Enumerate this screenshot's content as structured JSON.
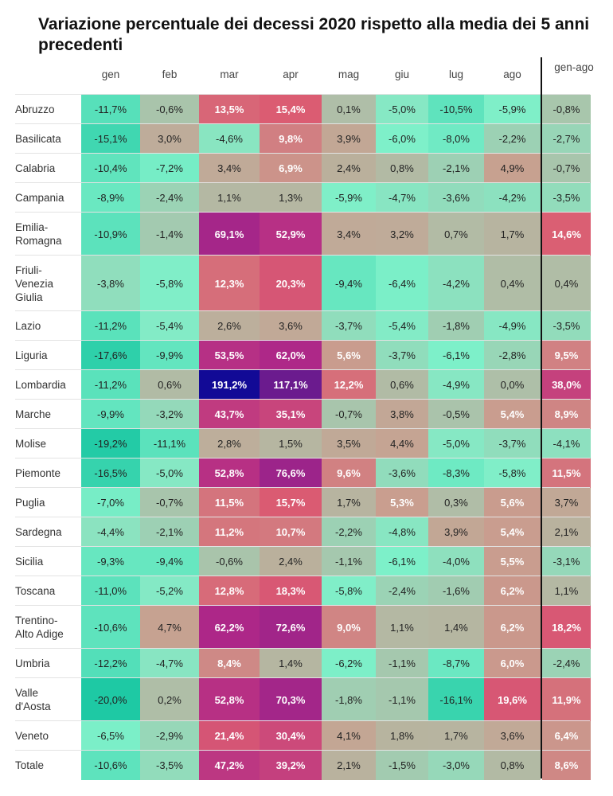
{
  "title": "Variazione percentuale dei decessi 2020 rispetto alla media dei 5 anni precedenti",
  "chart_data": {
    "type": "heatmap",
    "title": "Variazione percentuale dei decessi 2020 rispetto alla media dei 5 anni precedenti",
    "columns": [
      "gen",
      "feb",
      "mar",
      "apr",
      "mag",
      "giu",
      "lug",
      "ago",
      "gen-ago"
    ],
    "rows": [
      {
        "region": "Abruzzo",
        "values": [
          -11.7,
          -0.6,
          13.5,
          15.4,
          0.1,
          -5.0,
          -10.5,
          -5.9,
          -0.8
        ]
      },
      {
        "region": "Basilicata",
        "values": [
          -15.1,
          3.0,
          -4.6,
          9.8,
          3.9,
          -6.0,
          -8.0,
          -2.2,
          -2.7
        ]
      },
      {
        "region": "Calabria",
        "values": [
          -10.4,
          -7.2,
          3.4,
          6.9,
          2.4,
          0.8,
          -2.1,
          4.9,
          -0.7
        ]
      },
      {
        "region": "Campania",
        "values": [
          -8.9,
          -2.4,
          1.1,
          1.3,
          -5.9,
          -4.7,
          -3.6,
          -4.2,
          -3.5
        ]
      },
      {
        "region": "Emilia-Romagna",
        "values": [
          -10.9,
          -1.4,
          69.1,
          52.9,
          3.4,
          3.2,
          0.7,
          1.7,
          14.6
        ]
      },
      {
        "region": "Friuli-Venezia Giulia",
        "values": [
          -3.8,
          -5.8,
          12.3,
          20.3,
          -9.4,
          -6.4,
          -4.2,
          0.4,
          0.4
        ]
      },
      {
        "region": "Lazio",
        "values": [
          -11.2,
          -5.4,
          2.6,
          3.6,
          -3.7,
          -5.4,
          -1.8,
          -4.9,
          -3.5
        ]
      },
      {
        "region": "Liguria",
        "values": [
          -17.6,
          -9.9,
          53.5,
          62.0,
          5.6,
          -3.7,
          -6.1,
          -2.8,
          9.5
        ]
      },
      {
        "region": "Lombardia",
        "values": [
          -11.2,
          0.6,
          191.2,
          117.1,
          12.2,
          0.6,
          -4.9,
          0.0,
          38.0
        ]
      },
      {
        "region": "Marche",
        "values": [
          -9.9,
          -3.2,
          43.7,
          35.1,
          -0.7,
          3.8,
          -0.5,
          5.4,
          8.9
        ]
      },
      {
        "region": "Molise",
        "values": [
          -19.2,
          -11.1,
          2.8,
          1.5,
          3.5,
          4.4,
          -5.0,
          -3.7,
          -4.1
        ]
      },
      {
        "region": "Piemonte",
        "values": [
          -16.5,
          -5.0,
          52.8,
          76.6,
          9.6,
          -3.6,
          -8.3,
          -5.8,
          11.5
        ]
      },
      {
        "region": "Puglia",
        "values": [
          -7.0,
          -0.7,
          11.5,
          15.7,
          1.7,
          5.3,
          0.3,
          5.6,
          3.7
        ]
      },
      {
        "region": "Sardegna",
        "values": [
          -4.4,
          -2.1,
          11.2,
          10.7,
          -2.2,
          -4.8,
          3.9,
          5.4,
          2.1
        ]
      },
      {
        "region": "Sicilia",
        "values": [
          -9.3,
          -9.4,
          -0.6,
          2.4,
          -1.1,
          -6.1,
          -4.0,
          5.5,
          -3.1
        ]
      },
      {
        "region": "Toscana",
        "values": [
          -11.0,
          -5.2,
          12.8,
          18.3,
          -5.8,
          -2.4,
          -1.6,
          6.2,
          1.1
        ]
      },
      {
        "region": "Trentino-Alto Adige",
        "values": [
          -10.6,
          4.7,
          62.2,
          72.6,
          9.0,
          1.1,
          1.4,
          6.2,
          18.2
        ]
      },
      {
        "region": "Umbria",
        "values": [
          -12.2,
          -4.7,
          8.4,
          1.4,
          -6.2,
          -1.1,
          -8.7,
          6.0,
          -2.4
        ]
      },
      {
        "region": "Valle d'Aosta",
        "values": [
          -20.0,
          0.2,
          52.8,
          70.3,
          -1.8,
          -1.1,
          -16.1,
          19.6,
          11.9
        ]
      },
      {
        "region": "Veneto",
        "values": [
          -6.5,
          -2.9,
          21.4,
          30.4,
          4.1,
          1.8,
          1.7,
          3.6,
          6.4
        ]
      },
      {
        "region": "Totale",
        "values": [
          -10.6,
          -3.5,
          47.2,
          39.2,
          2.1,
          -1.5,
          -3.0,
          0.8,
          8.6
        ]
      }
    ],
    "value_format": "percent, comma decimal",
    "colors": {
      "most_negative": "#1ec9a4",
      "negative": "#7ef0c9",
      "zero": "#aebfa8",
      "positive_low": "#c8a090",
      "positive_mid": "#db5c72",
      "positive_high": "#b02888",
      "highest": "#120a96"
    },
    "separator_before_last_column": true
  }
}
